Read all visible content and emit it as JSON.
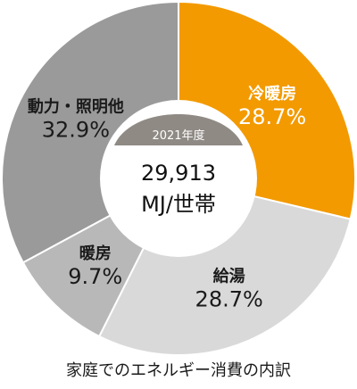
{
  "chart_data": {
    "type": "pie",
    "variant": "donut",
    "start_angle_deg": 0,
    "direction": "clockwise",
    "slices": [
      {
        "name": "冷暖房",
        "value": 28.7,
        "label": "28.7%",
        "color": "#f39a00",
        "text_color": "#ffffff"
      },
      {
        "name": "給湯",
        "value": 28.7,
        "label": "28.7%",
        "color": "#d9d9d9",
        "text_color": "#1a1a1a"
      },
      {
        "name": "暖房",
        "value": 9.7,
        "label": "9.7%",
        "color": "#b8b8b8",
        "text_color": "#1a1a1a"
      },
      {
        "name": "動力・照明他",
        "value": 32.9,
        "label": "32.9%",
        "color": "#9a9a9a",
        "text_color": "#1a1a1a"
      }
    ],
    "center": {
      "badge": "2021年度",
      "badge_color": "#8f8a84",
      "value_line": "29,913",
      "unit_line": "MJ/世帯"
    },
    "caption": "家庭でのエネルギー消費の内訳"
  }
}
